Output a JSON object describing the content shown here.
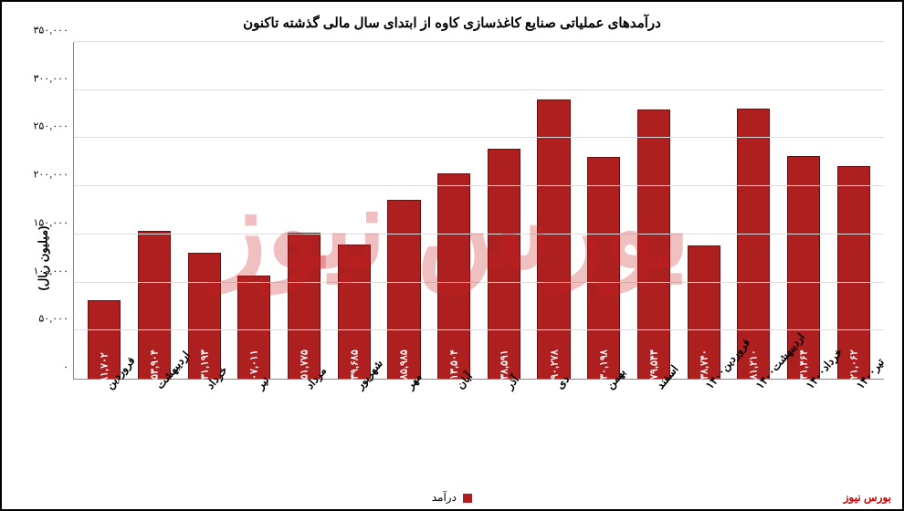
{
  "chart": {
    "type": "bar",
    "title": "درآمدهای عملیاتی صنایع کاغذسازی کاوه از ابتدای سال مالی گذشته تاکنون",
    "ylabel": "(میلیون ریال)",
    "ymax": 350000,
    "ystep": 50000,
    "yticks": [
      "۰",
      "۵۰,۰۰۰",
      "۱۰۰,۰۰۰",
      "۱۵۰,۰۰۰",
      "۲۰۰,۰۰۰",
      "۲۵۰,۰۰۰",
      "۳۰۰,۰۰۰",
      "۳۵۰,۰۰۰"
    ],
    "bar_color": "#ae2020",
    "bar_border": "#6d0d0d",
    "grid_color": "#dddddd",
    "background": "#ffffff",
    "categories": [
      "فروردین",
      "اردیبهشت",
      "خرداد",
      "تیر",
      "مرداد",
      "شهریور",
      "مهر",
      "آبان",
      "آذر",
      "دی",
      "بهمن",
      "اسفند",
      "فروردین۱۴۰۰",
      "اردیبهشت۱۴۰۰",
      "خرداد۱۴۰۰",
      "تیر۱۴۰۰"
    ],
    "values": [
      81702,
      153904,
      131193,
      107011,
      151775,
      139685,
      185985,
      213504,
      238591,
      290278,
      230198,
      279543,
      138740,
      281210,
      231464,
      221062
    ],
    "value_labels": [
      "۸۱,۷۰۲",
      "۱۵۳,۹۰۴",
      "۱۳۱,۱۹۳",
      "۱۰۷,۰۱۱",
      "۱۵۱,۷۷۵",
      "۱۳۹,۶۸۵",
      "۱۸۵,۹۸۵",
      "۲۱۳,۵۰۴",
      "۲۳۸,۵۹۱",
      "۲۹۰,۲۷۸",
      "۲۳۰,۱۹۸",
      "۲۷۹,۵۴۳",
      "۱۳۸,۷۴۰",
      "۲۸۱,۲۱۰",
      "۲۳۱,۴۶۴",
      "۲۲۱,۰۶۲"
    ],
    "legend_label": "درآمد",
    "footer": "بورس نیوز",
    "watermark": "بورس نیوز"
  }
}
